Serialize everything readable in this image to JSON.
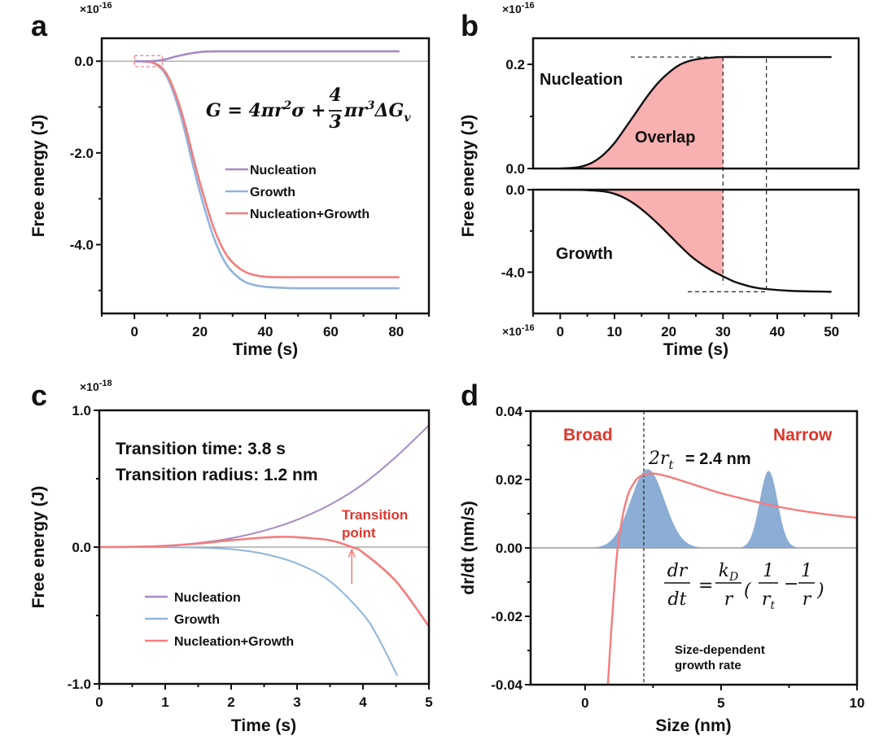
{
  "colors": {
    "nucleation": "#a58bc2",
    "growth": "#90b4dc",
    "combined": "#f47c7c",
    "overlap_fill": "#f9b0b0",
    "distribution_fill": "#8cadd4",
    "annotation_red": "#e0362c",
    "zero_line": "#9a9a9a",
    "frame": "#111111"
  },
  "chart_data": [
    {
      "panel": "a",
      "type": "line",
      "title": "",
      "xlabel": "Time (s)",
      "ylabel": "Free energy (J)",
      "y_multiplier": "×10-16",
      "y_multiplier_base": "×10",
      "y_multiplier_exp": "-16",
      "xlim": [
        -10,
        90
      ],
      "ylim": [
        -5.5,
        0.5
      ],
      "xticks": [
        0,
        20,
        40,
        60,
        80
      ],
      "xtick_labels": [
        "0",
        "20",
        "40",
        "60",
        "80"
      ],
      "yticks": [
        0.0,
        -2.0,
        -4.0
      ],
      "ytick_labels": [
        "0.0",
        "-2.0",
        "-4.0"
      ],
      "grid": false,
      "legend_position": "center-right",
      "annotation_equation": "G = 4πr²σ + (4/3)πr³ΔGv",
      "highlight_box": {
        "x": [
          0,
          8.5
        ],
        "y": [
          -0.12,
          0.12
        ],
        "style": "dashed"
      },
      "series": [
        {
          "name": "Nucleation",
          "x": [
            0,
            5,
            8,
            10,
            12,
            15,
            18,
            20,
            22,
            25,
            30,
            40,
            60,
            81
          ],
          "y": [
            0,
            0.0,
            0.02,
            0.05,
            0.09,
            0.14,
            0.18,
            0.2,
            0.21,
            0.214,
            0.214,
            0.214,
            0.214,
            0.214
          ]
        },
        {
          "name": "Growth",
          "x": [
            0,
            5,
            8,
            10,
            12,
            14,
            16,
            18,
            20,
            22,
            24,
            26,
            28,
            30,
            33,
            36,
            40,
            45,
            50,
            60,
            81
          ],
          "y": [
            0,
            -0.02,
            -0.15,
            -0.35,
            -0.7,
            -1.15,
            -1.7,
            -2.3,
            -2.85,
            -3.35,
            -3.8,
            -4.15,
            -4.42,
            -4.6,
            -4.78,
            -4.87,
            -4.92,
            -4.94,
            -4.95,
            -4.95,
            -4.95
          ]
        },
        {
          "name": "Nucleation+Growth",
          "x": [
            0,
            5,
            8,
            10,
            12,
            14,
            16,
            18,
            20,
            22,
            24,
            26,
            28,
            30,
            33,
            36,
            40,
            45,
            50,
            60,
            81
          ],
          "y": [
            0,
            -0.02,
            -0.12,
            -0.3,
            -0.61,
            -1.02,
            -1.53,
            -2.11,
            -2.65,
            -3.14,
            -3.59,
            -3.94,
            -4.21,
            -4.39,
            -4.56,
            -4.65,
            -4.7,
            -4.71,
            -4.71,
            -4.71,
            -4.71
          ]
        }
      ]
    },
    {
      "panel": "b",
      "type": "area",
      "xlabel": "Time (s)",
      "ylabel": "Free energy (J)",
      "y_multiplier_base": "×10",
      "y_multiplier_exp": "-16",
      "xlim": [
        -5,
        55
      ],
      "xticks": [
        0,
        10,
        20,
        30,
        40,
        50
      ],
      "xtick_labels": [
        "0",
        "10",
        "20",
        "30",
        "40",
        "50"
      ],
      "grid": false,
      "overlap_end_time": 30,
      "growth_plateau_time": 38,
      "subplots": [
        {
          "name": "Nucleation",
          "label": "Nucleation",
          "ylim": [
            0,
            0.25
          ],
          "yticks": [
            0.0,
            0.2
          ],
          "ytick_labels": [
            "0.0",
            "0.2"
          ],
          "plateau": 0.214,
          "x": [
            0,
            2,
            4,
            6,
            8,
            10,
            12,
            14,
            16,
            18,
            20,
            22,
            24,
            26,
            28,
            30,
            35,
            40,
            50
          ],
          "y": [
            0,
            0.001,
            0.004,
            0.012,
            0.027,
            0.049,
            0.078,
            0.108,
            0.138,
            0.164,
            0.184,
            0.199,
            0.207,
            0.211,
            0.213,
            0.214,
            0.214,
            0.214,
            0.214
          ]
        },
        {
          "name": "Growth",
          "label": "Growth",
          "ylim": [
            -6.0,
            0.0
          ],
          "yticks": [
            0.0,
            -4.0
          ],
          "ytick_labels": [
            "0.0",
            "-4.0"
          ],
          "plateau": -4.95,
          "x": [
            0,
            4,
            8,
            10,
            12,
            14,
            16,
            18,
            20,
            22,
            24,
            26,
            28,
            30,
            32,
            34,
            36,
            38,
            42,
            46,
            50
          ],
          "y": [
            0,
            -0.01,
            -0.08,
            -0.2,
            -0.42,
            -0.75,
            -1.17,
            -1.65,
            -2.17,
            -2.7,
            -3.2,
            -3.6,
            -3.93,
            -4.2,
            -4.45,
            -4.62,
            -4.75,
            -4.82,
            -4.9,
            -4.93,
            -4.95
          ]
        }
      ],
      "annotations": [
        "Nucleation",
        "Overlap",
        "Growth"
      ]
    },
    {
      "panel": "c",
      "type": "line",
      "xlabel": "Time (s)",
      "ylabel": "Free energy (J)",
      "y_multiplier_base": "×10",
      "y_multiplier_exp": "-18",
      "xlim": [
        0,
        5
      ],
      "ylim": [
        -1.0,
        1.0
      ],
      "xticks": [
        0,
        1,
        2,
        3,
        4,
        5
      ],
      "xtick_labels": [
        "0",
        "1",
        "2",
        "3",
        "4",
        "5"
      ],
      "yticks": [
        1.0,
        0.0,
        -1.0
      ],
      "ytick_labels": [
        "1.0",
        "0.0",
        "-1.0"
      ],
      "grid": false,
      "legend_position": "lower-left",
      "annotations": {
        "transition_time": "Transition time: 3.8 s",
        "transition_radius": "Transition radius: 1.2 nm",
        "transition_point_line1": "Transition",
        "transition_point_line2": "point",
        "transition_point_x": 3.83
      },
      "series": [
        {
          "name": "Nucleation",
          "x": [
            0,
            0.5,
            1,
            1.5,
            2,
            2.5,
            3,
            3.5,
            4,
            4.5,
            5
          ],
          "y": [
            0,
            0.002,
            0.01,
            0.03,
            0.065,
            0.12,
            0.2,
            0.31,
            0.46,
            0.66,
            0.89
          ]
        },
        {
          "name": "Growth",
          "x": [
            0,
            0.5,
            1,
            1.5,
            2,
            2.5,
            3,
            3.5,
            4,
            4.25,
            4.52
          ],
          "y": [
            0,
            0,
            -0.001,
            -0.004,
            -0.015,
            -0.05,
            -0.12,
            -0.25,
            -0.49,
            -0.68,
            -0.94
          ]
        },
        {
          "name": "Nucleation+Growth",
          "x": [
            0,
            0.5,
            1,
            1.5,
            2,
            2.5,
            2.8,
            3,
            3.5,
            3.83,
            4,
            4.5,
            5
          ],
          "y": [
            0,
            0.002,
            0.009,
            0.026,
            0.05,
            0.07,
            0.075,
            0.072,
            0.05,
            0.0,
            -0.04,
            -0.25,
            -0.58
          ]
        }
      ]
    },
    {
      "panel": "d",
      "type": "line",
      "xlabel": "Size (nm)",
      "ylabel": "dr/dt (nm/s)",
      "xlim": [
        -2,
        10
      ],
      "ylim": [
        -0.04,
        0.04
      ],
      "xticks": [
        0,
        5,
        10
      ],
      "xtick_labels": [
        "0",
        "5",
        "10"
      ],
      "yticks": [
        0.04,
        0.02,
        0.0,
        -0.02,
        -0.04
      ],
      "ytick_labels": [
        "0.04",
        "0.02",
        "0.00",
        "-0.02",
        "-0.04"
      ],
      "grid": false,
      "critical_size_x": 2.4,
      "critical_label": "2r_t = 2.4 nm",
      "annotations": {
        "broad": "Broad",
        "narrow": "Narrow",
        "critical_lhs": "2r",
        "critical_sub": "t",
        "critical_rhs": "= 2.4 nm",
        "equation": "dr/dt = (k_D/r)(1/r_t − 1/r)",
        "caption_line1": "Size-dependent",
        "caption_line2": "growth rate"
      },
      "series": [
        {
          "name": "Growth rate",
          "type": "line",
          "x": [
            0.84,
            0.9,
            1.0,
            1.1,
            1.2,
            1.4,
            1.6,
            1.8,
            2.0,
            2.4,
            3,
            4,
            5,
            6,
            7,
            8,
            9,
            10
          ],
          "y": [
            -0.04,
            -0.032,
            -0.02,
            -0.009,
            0.0,
            0.01,
            0.016,
            0.019,
            0.0208,
            0.0218,
            0.021,
            0.0185,
            0.016,
            0.014,
            0.0122,
            0.0108,
            0.0097,
            0.0088
          ]
        },
        {
          "name": "Broad distribution",
          "type": "gaussian_area",
          "center": 2.3,
          "sigma": 0.62,
          "peak": 0.023
        },
        {
          "name": "Narrow distribution",
          "type": "gaussian_area",
          "center": 6.75,
          "sigma": 0.33,
          "peak": 0.0225
        }
      ]
    }
  ],
  "panels": {
    "a": {
      "label": "a"
    },
    "b": {
      "label": "b"
    },
    "c": {
      "label": "c"
    },
    "d": {
      "label": "d"
    }
  }
}
